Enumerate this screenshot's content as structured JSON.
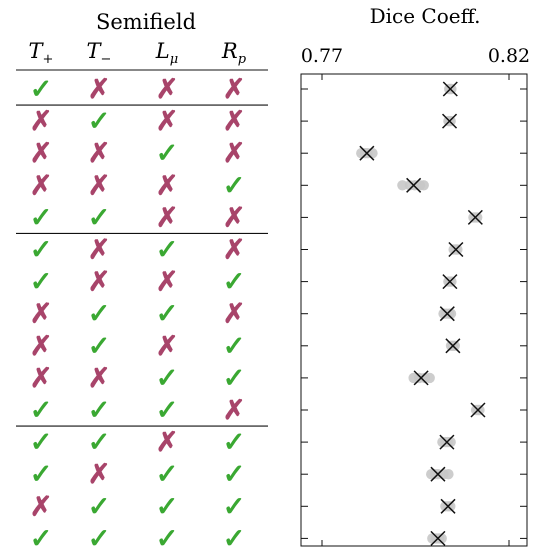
{
  "table": {
    "group_title": "Semifield",
    "columns": [
      {
        "main": "T",
        "sub": "+"
      },
      {
        "main": "T",
        "sub": "−"
      },
      {
        "main": "L",
        "sub": "μ"
      },
      {
        "main": "R",
        "sub": "p"
      }
    ],
    "check_symbol": "✓",
    "cross_symbol": "✗",
    "rows": [
      [
        true,
        false,
        false,
        false
      ],
      [
        false,
        true,
        false,
        false
      ],
      [
        false,
        false,
        true,
        false
      ],
      [
        false,
        false,
        false,
        true
      ],
      [
        true,
        true,
        false,
        false
      ],
      [
        true,
        false,
        true,
        false
      ],
      [
        true,
        false,
        false,
        true
      ],
      [
        false,
        true,
        true,
        false
      ],
      [
        false,
        true,
        false,
        true
      ],
      [
        false,
        false,
        true,
        true
      ],
      [
        true,
        true,
        true,
        false
      ],
      [
        true,
        true,
        false,
        true
      ],
      [
        true,
        false,
        true,
        true
      ],
      [
        false,
        true,
        true,
        true
      ],
      [
        true,
        true,
        true,
        true
      ]
    ],
    "group_ends": [
      0,
      4,
      10,
      14
    ],
    "colors": {
      "check": "#3aa832",
      "cross": "#a8446a"
    }
  },
  "chart_data": {
    "type": "scatter",
    "title": "Dice Coeff.",
    "xlim": [
      0.77,
      0.82
    ],
    "xticks": [
      "0.77",
      "0.82"
    ],
    "grid": false,
    "marker_mean": "x",
    "colors": {
      "runs": "#c8c8c8",
      "mean": "#111111"
    },
    "rows": [
      {
        "runs": [
          0.804,
          0.8043,
          0.8046
        ],
        "mean": 0.8043
      },
      {
        "runs": [
          0.8038,
          0.8041,
          0.8044
        ],
        "mean": 0.8041
      },
      {
        "runs": [
          0.7805,
          0.7815,
          0.7822,
          0.7835
        ],
        "mean": 0.782
      },
      {
        "runs": [
          0.7915,
          0.7935,
          0.7948,
          0.7962,
          0.7972
        ],
        "mean": 0.7945
      },
      {
        "runs": [
          0.8105,
          0.811,
          0.8115
        ],
        "mean": 0.811
      },
      {
        "runs": [
          0.8052,
          0.8058,
          0.8062
        ],
        "mean": 0.8058
      },
      {
        "runs": [
          0.8038,
          0.8042,
          0.8046
        ],
        "mean": 0.8042
      },
      {
        "runs": [
          0.8025,
          0.8032,
          0.804,
          0.8045
        ],
        "mean": 0.8035
      },
      {
        "runs": [
          0.8045,
          0.805,
          0.8055
        ],
        "mean": 0.805
      },
      {
        "runs": [
          0.7945,
          0.796,
          0.7975,
          0.7988
        ],
        "mean": 0.7965
      },
      {
        "runs": [
          0.8112,
          0.8117,
          0.8121
        ],
        "mean": 0.8117
      },
      {
        "runs": [
          0.8022,
          0.803,
          0.8036,
          0.8044
        ],
        "mean": 0.8034
      },
      {
        "runs": [
          0.7992,
          0.8002,
          0.801,
          0.8025,
          0.8038
        ],
        "mean": 0.801
      },
      {
        "runs": [
          0.803,
          0.8037,
          0.8043
        ],
        "mean": 0.8037
      },
      {
        "runs": [
          0.7995,
          0.8005,
          0.8013,
          0.802
        ],
        "mean": 0.801
      }
    ]
  }
}
